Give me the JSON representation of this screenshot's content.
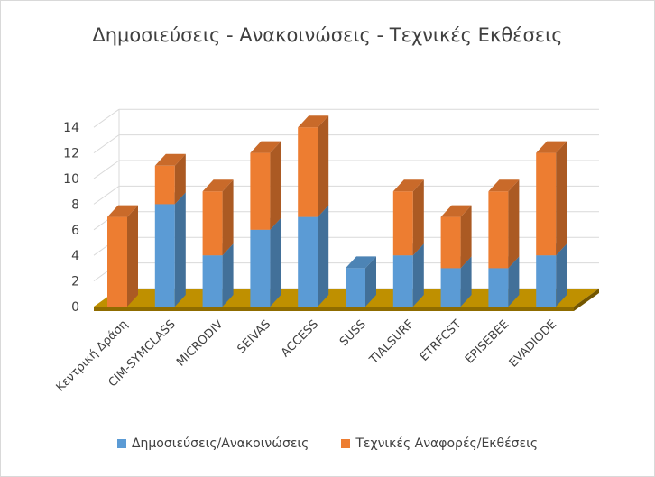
{
  "chart_data": {
    "type": "bar",
    "stacked": true,
    "three_d": true,
    "title": "Δημοσιεύσεις - Ανακοινώσεις - Τεχνικές Εκθέσεις",
    "categories": [
      "Κεντρική Δράση",
      "CIM-SYMCLASS",
      "MICRODIV",
      "SEIVAS",
      "ACCESS",
      "SUSS",
      "TIALSURF",
      "ETRFCST",
      "EPISEBEE",
      "EVADIODE"
    ],
    "series": [
      {
        "name": "Δημοσιεύσεις/Ανακοινώσεις",
        "values": [
          0,
          8,
          4,
          6,
          7,
          3,
          4,
          3,
          3,
          4
        ],
        "color": "#5b9bd5"
      },
      {
        "name": "Τεχνικές Αναφορές/Εκθέσεις",
        "values": [
          7,
          3,
          5,
          6,
          7,
          0,
          5,
          4,
          6,
          8
        ],
        "color": "#ed7d31"
      }
    ],
    "ylim": [
      0,
      14
    ],
    "yticks": [
      0,
      2,
      4,
      6,
      8,
      10,
      12,
      14
    ],
    "grid": true,
    "floor_color": "#bf9000",
    "legend_position": "bottom"
  }
}
